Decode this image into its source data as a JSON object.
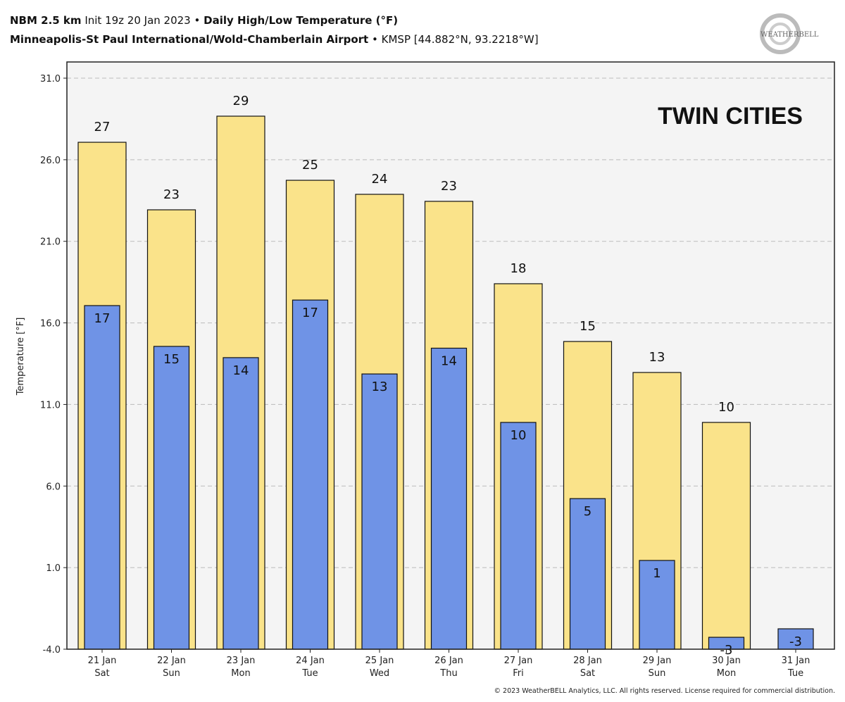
{
  "header": {
    "model": "NBM 2.5 km",
    "init": "Init 19z 20 Jan 2023",
    "sep": "•",
    "product": "Daily High/Low Temperature (°F)",
    "station": "Minneapolis-St Paul International/Wold-Chamberlain Airport",
    "location": "KMSP [44.882°N, 93.2218°W]"
  },
  "logo_text": "WEATHERBELL",
  "copyright": "© 2023 WeatherBELL Analytics, LLC. All rights reserved. License required for commercial distribution.",
  "chart_data": {
    "type": "bar",
    "annotation": "TWIN CITIES",
    "ylabel": "Temperature [°F]",
    "xlabel": "",
    "ylim": [
      -4,
      31
    ],
    "yticks": [
      "31.0",
      "26.0",
      "21.0",
      "16.0",
      "11.0",
      "6.0",
      "1.0",
      "-4.0"
    ],
    "grid": true,
    "categories": [
      "21 Jan\nSat",
      "22 Jan\nSun",
      "23 Jan\nMon",
      "24 Jan\nTue",
      "25 Jan\nWed",
      "26 Jan\nThu",
      "27 Jan\nFri",
      "28 Jan\nSat",
      "29 Jan\nSun",
      "30 Jan\nMon",
      "31 Jan\nTue"
    ],
    "series": [
      {
        "name": "High",
        "color": "#fae38a",
        "values": [
          27.07,
          22.93,
          28.67,
          24.74,
          23.88,
          23.45,
          18.4,
          14.86,
          12.96,
          9.9,
          null
        ],
        "labels": [
          "27",
          "23",
          "29",
          "25",
          "24",
          "23",
          "18",
          "15",
          "13",
          "10",
          ""
        ]
      },
      {
        "name": "Low",
        "color": "#6f93e6",
        "values": [
          17.06,
          14.56,
          13.87,
          17.4,
          12.87,
          14.45,
          9.9,
          5.23,
          1.44,
          -3.27,
          -2.75
        ],
        "labels": [
          "17",
          "15",
          "14",
          "17",
          "13",
          "14",
          "10",
          "5",
          "1",
          "-3",
          "-3"
        ]
      }
    ]
  }
}
